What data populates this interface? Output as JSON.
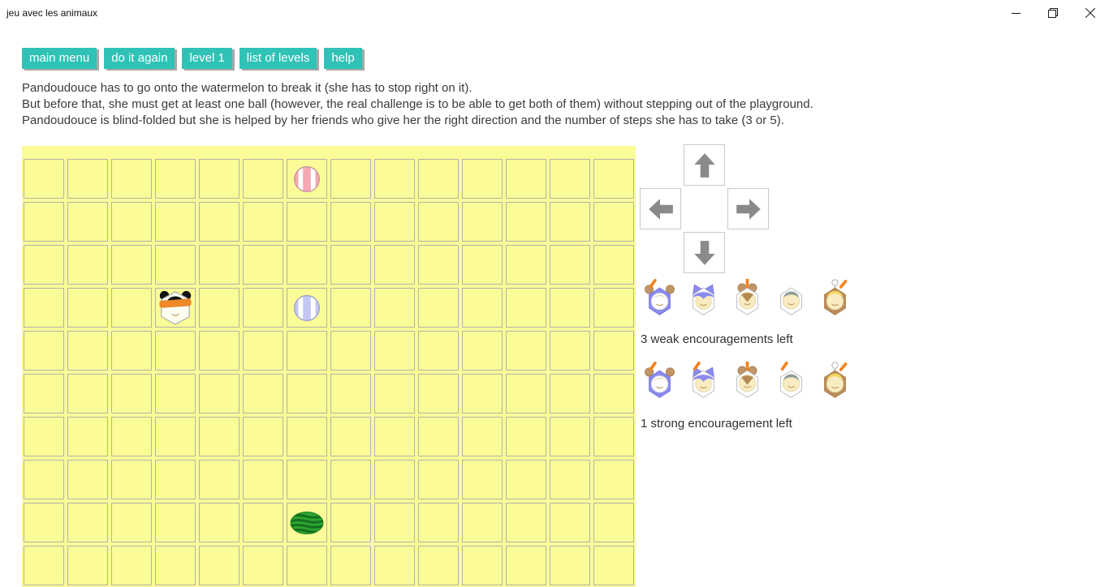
{
  "window": {
    "title": "jeu avec les animaux",
    "controls": {
      "minimize": "minimize",
      "restore": "restore",
      "close": "close"
    }
  },
  "toolbar": {
    "buttons": [
      {
        "id": "main-menu",
        "label": "main menu"
      },
      {
        "id": "do-it-again",
        "label": "do it again"
      },
      {
        "id": "level-1",
        "label": "level 1"
      },
      {
        "id": "list-of-levels",
        "label": "list of levels"
      },
      {
        "id": "help",
        "label": "help"
      }
    ]
  },
  "instructions": {
    "lines": [
      "Pandoudouce has to go onto the watermelon to break it (she has to stop right on it).",
      "But before that, she must get at least one ball (however, the real challenge is to be able to get both of them) without stepping out of the playground.",
      "Pandoudouce is blind-folded but she is helped by her friends who give her the right direction and the number of steps she has to take (3 or 5)."
    ]
  },
  "playground": {
    "columns": 14,
    "visible_rows": 10,
    "pieces": [
      {
        "type": "ball-pink",
        "name": "pink ball",
        "col": 7,
        "row": 1
      },
      {
        "type": "pandoudouce",
        "name": "Pandoudouce",
        "col": 4,
        "row": 4
      },
      {
        "type": "ball-blue",
        "name": "blue ball",
        "col": 7,
        "row": 4
      },
      {
        "type": "watermelon",
        "name": "watermelon",
        "col": 7,
        "row": 9
      }
    ]
  },
  "controls": {
    "arrows": [
      {
        "dir": "up"
      },
      {
        "dir": "left"
      },
      {
        "dir": "right"
      },
      {
        "dir": "down"
      }
    ],
    "weak": {
      "label": "3 weak encouragements left",
      "count_left": 3,
      "friends": [
        {
          "kind": "bear",
          "stick": true
        },
        {
          "kind": "cat",
          "stick": false
        },
        {
          "kind": "mouse",
          "stick": true
        },
        {
          "kind": "plain",
          "stick": false
        },
        {
          "kind": "blonde",
          "stick": true
        }
      ]
    },
    "strong": {
      "label": "1 strong encouragement left",
      "count_left": 1,
      "friends": [
        {
          "kind": "bear",
          "stick": true
        },
        {
          "kind": "cat",
          "stick": true
        },
        {
          "kind": "mouse",
          "stick": true
        },
        {
          "kind": "plain",
          "stick": true
        },
        {
          "kind": "blonde",
          "stick": true
        }
      ]
    }
  },
  "colors": {
    "accent_teal": "#30C2B6",
    "playground_yellow": "#FBFB98",
    "cell_border": "#b3b3a7",
    "arrow_gray": "#8A8A8A",
    "stick_orange": "#F5831F",
    "blindfold_orange": "#F08A28"
  }
}
